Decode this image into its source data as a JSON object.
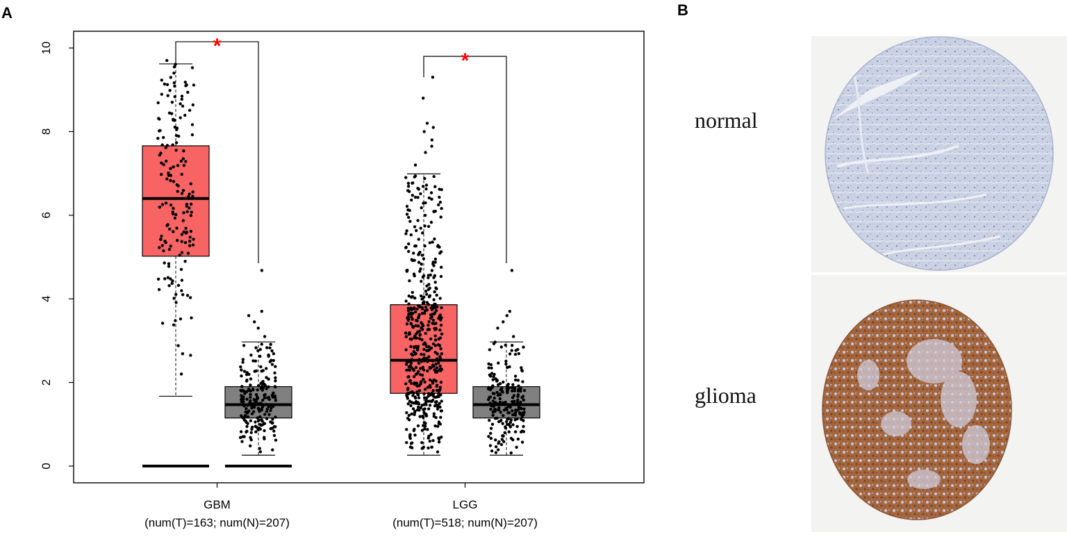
{
  "panel_a": {
    "letter": "A"
  },
  "panel_b": {
    "letter": "B",
    "normal_label": "normal",
    "glioma_label": "glioma"
  },
  "colors": {
    "tumor_fill": "#f86464",
    "normal_fill": "#808080",
    "point": "#000000",
    "significance": "#ff0000",
    "normal_tissue": "#c7cfe2",
    "glioma_tissue": "#a8663a",
    "slide_bg": "#f3f3f1"
  },
  "chart_data": {
    "type": "box",
    "title": "",
    "xlabel": "",
    "ylabel": "",
    "ylim": [
      -0.4,
      10.4
    ],
    "yticks": [
      0,
      2,
      4,
      6,
      8,
      10
    ],
    "ytick_labels": [
      "0",
      "2",
      "4",
      "6",
      "8",
      "10"
    ],
    "grid": false,
    "categories": [
      {
        "name": "GBM",
        "label_line1": "GBM",
        "label_line2": "(num(T)=163; num(N)=207)"
      },
      {
        "name": "LGG",
        "label_line1": "LGG",
        "label_line2": "(num(T)=518; num(N)=207)"
      }
    ],
    "boxes": [
      {
        "category": "GBM",
        "group": "Tumor",
        "q1": 5.02,
        "median": 6.4,
        "q3": 7.66,
        "whisker_low": 1.67,
        "whisker_high": 9.62,
        "n": 163,
        "zeros": true
      },
      {
        "category": "GBM",
        "group": "Normal",
        "q1": 1.15,
        "median": 1.47,
        "q3": 1.9,
        "whisker_low": 0.26,
        "whisker_high": 2.97,
        "n": 207,
        "zeros": true
      },
      {
        "category": "LGG",
        "group": "Tumor",
        "q1": 1.74,
        "median": 2.53,
        "q3": 3.86,
        "whisker_low": 0.26,
        "whisker_high": 6.99,
        "n": 518,
        "zeros": false
      },
      {
        "category": "LGG",
        "group": "Normal",
        "q1": 1.15,
        "median": 1.47,
        "q3": 1.9,
        "whisker_low": 0.26,
        "whisker_high": 2.97,
        "n": 207,
        "zeros": false
      }
    ],
    "significance": [
      {
        "category": "GBM",
        "symbol": "*",
        "bracket_y": 10.15,
        "left_y": 9.62,
        "right_y": 4.85
      },
      {
        "category": "LGG",
        "symbol": "*",
        "bracket_y": 9.8,
        "left_y": 9.3,
        "right_y": 4.85
      }
    ]
  }
}
